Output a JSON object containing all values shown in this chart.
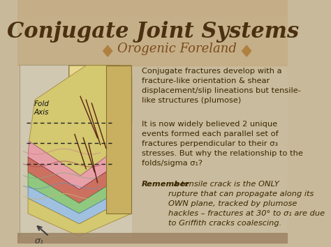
{
  "title": "Conjugate Joint Systems",
  "subtitle": "Orogenic Foreland",
  "bg_color": "#c8b99a",
  "title_color": "#4a3010",
  "subtitle_color": "#7a4a1a",
  "text_color": "#3a2800",
  "italic_text_color": "#5a3800",
  "panel_color": "#d4c8a8",
  "left_panel_bg": "#b8a888",
  "para1": "Conjugate fractures develop with a\nfracture-like orientation & shear\ndisplacement/slip lineations but tensile-\nlike structures (plumose)",
  "para2": "It is now widely believed 2 unique\nevents formed each parallel set of\nfractures perpendicular to their σ₃\nstresses. But why the relationship to the\nfolds/sigma σ₁?",
  "para3_bold": "Remember",
  "para3_rest": ": a tensile crack is the ONLY\nrupture that can propagate along its\nOWN plane, tracked by plumose\nhackles – fractures at 30° to σ₁ are due\nto Griffith cracks coalescing.",
  "fold_axis_label": "Fold\nAxis",
  "sigma1_label": "σ₁"
}
